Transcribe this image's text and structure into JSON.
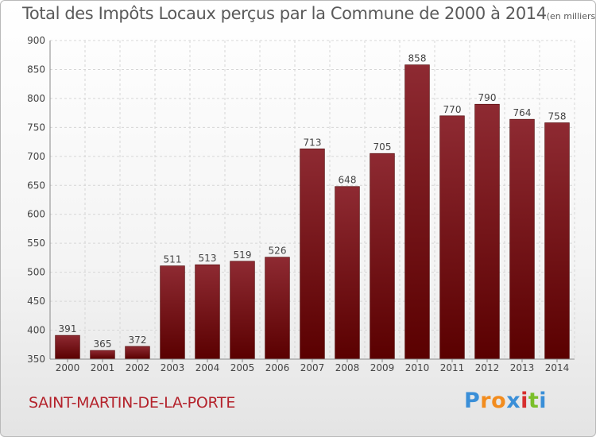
{
  "chart_data": {
    "type": "bar",
    "title": "Total des Impôts Locaux perçus par la Commune de 2000 à 2014",
    "unit_note": "(en milliers d'€)",
    "categories": [
      "2000",
      "2001",
      "2002",
      "2003",
      "2004",
      "2005",
      "2006",
      "2007",
      "2008",
      "2009",
      "2010",
      "2011",
      "2012",
      "2013",
      "2014"
    ],
    "values": [
      391,
      365,
      372,
      511,
      513,
      519,
      526,
      713,
      648,
      705,
      858,
      770,
      790,
      764,
      758
    ],
    "ylim": [
      350,
      900
    ],
    "yticks": [
      350,
      400,
      450,
      500,
      550,
      600,
      650,
      700,
      750,
      800,
      850,
      900
    ],
    "grid": true,
    "bar_color": "#8b1a22"
  },
  "commune_name": "SAINT-MARTIN-DE-LA-PORTE",
  "logo": {
    "letters": [
      "P",
      "r",
      "o",
      "x",
      "i",
      "t",
      "i"
    ],
    "colors": [
      "#3a8fd8",
      "#f28c1e",
      "#f28c1e",
      "#3a8fd8",
      "#d62e2e",
      "#7bbf2a",
      "#3a8fd8"
    ]
  }
}
